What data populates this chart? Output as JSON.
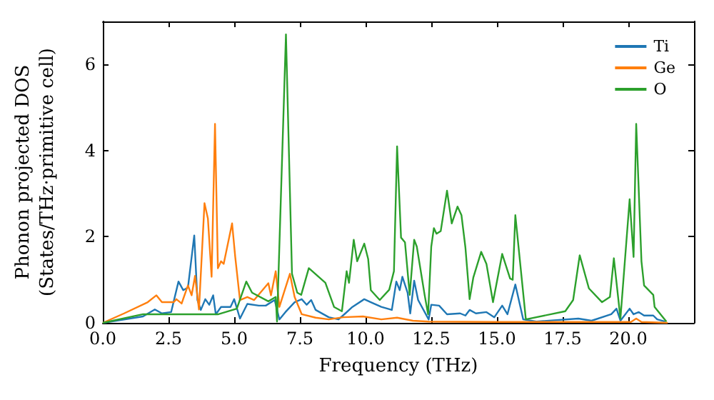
{
  "chart_data": {
    "type": "line",
    "xlabel": "Frequency (THz)",
    "ylabel": "Phonon projected DOS\n(States/THz·primitive cell)",
    "xlim": [
      0,
      22.5
    ],
    "xticks": [
      {
        "value": 0,
        "label": "0.0"
      },
      {
        "value": 2.5,
        "label": "2.5"
      },
      {
        "value": 5,
        "label": "5.0"
      },
      {
        "value": 7.5,
        "label": "7.5"
      },
      {
        "value": 10,
        "label": "10.0"
      },
      {
        "value": 12.5,
        "label": "12.5"
      },
      {
        "value": 15,
        "label": "15.0"
      },
      {
        "value": 17.5,
        "label": "17.5"
      },
      {
        "value": 20,
        "label": "20.0"
      }
    ],
    "ylim": [
      0,
      7
    ],
    "yticks": [
      0,
      2,
      4,
      6
    ],
    "legend": "top right",
    "grid": false,
    "line_style": "solid",
    "marker": "none",
    "series": [
      {
        "name": "Ti",
        "color": "#1f77b4",
        "x": [
          0,
          1.53,
          1.98,
          2.25,
          2.6,
          2.88,
          3.06,
          3.24,
          3.48,
          3.6,
          3.73,
          3.9,
          4.05,
          4.2,
          4.3,
          4.5,
          4.86,
          5.0,
          5.22,
          5.5,
          5.94,
          6.2,
          6.54,
          6.72,
          6.95,
          7.3,
          7.57,
          7.76,
          7.93,
          8.1,
          8.6,
          8.97,
          9.23,
          9.5,
          9.95,
          10.2,
          10.6,
          11.0,
          11.17,
          11.3,
          11.4,
          11.6,
          11.7,
          11.85,
          12.0,
          12.4,
          12.5,
          12.8,
          13.1,
          13.6,
          13.8,
          13.96,
          14.2,
          14.6,
          14.9,
          15.2,
          15.4,
          15.7,
          16.0,
          16.5,
          18.1,
          18.6,
          19.35,
          19.55,
          19.7,
          20.05,
          20.2,
          20.4,
          20.6,
          20.95,
          21.1,
          21.4
        ],
        "values": [
          0,
          0.15,
          0.31,
          0.22,
          0.25,
          0.96,
          0.76,
          0.82,
          2.03,
          0.53,
          0.3,
          0.55,
          0.42,
          0.64,
          0.2,
          0.37,
          0.37,
          0.55,
          0.1,
          0.44,
          0.4,
          0.4,
          0.53,
          0.08,
          0.25,
          0.48,
          0.55,
          0.42,
          0.53,
          0.3,
          0.13,
          0.08,
          0.22,
          0.37,
          0.55,
          0.48,
          0.37,
          0.3,
          0.96,
          0.76,
          1.07,
          0.7,
          0.22,
          0.98,
          0.53,
          0.08,
          0.42,
          0.4,
          0.2,
          0.22,
          0.17,
          0.3,
          0.22,
          0.25,
          0.13,
          0.4,
          0.2,
          0.89,
          0.08,
          0.03,
          0.1,
          0.05,
          0.2,
          0.33,
          0.05,
          0.33,
          0.2,
          0.25,
          0.17,
          0.17,
          0.08,
          0.03
        ]
      },
      {
        "name": "Ge",
        "color": "#ff7f0e",
        "x": [
          0,
          0.81,
          1.71,
          2.04,
          2.25,
          2.7,
          2.8,
          3.0,
          3.24,
          3.38,
          3.51,
          3.66,
          3.87,
          4.0,
          4.14,
          4.27,
          4.38,
          4.5,
          4.6,
          4.92,
          5.04,
          5.22,
          5.5,
          5.76,
          6.3,
          6.4,
          6.58,
          6.72,
          7.12,
          7.3,
          7.57,
          8.1,
          8.6,
          9.15,
          9.9,
          10.6,
          11.2,
          11.8,
          12.4,
          15,
          18,
          20.1,
          20.3,
          20.5,
          21.5
        ],
        "values": [
          0,
          0.22,
          0.48,
          0.64,
          0.48,
          0.48,
          0.55,
          0.45,
          0.87,
          0.64,
          1.09,
          0.31,
          2.78,
          2.42,
          1.07,
          4.62,
          1.27,
          1.43,
          1.37,
          2.31,
          1.53,
          0.53,
          0.6,
          0.53,
          0.92,
          0.64,
          1.2,
          0.37,
          1.14,
          0.6,
          0.2,
          0.12,
          0.08,
          0.13,
          0.15,
          0.08,
          0.12,
          0.05,
          0.03,
          0.02,
          0.02,
          0.02,
          0.1,
          0.02,
          0
        ]
      },
      {
        "name": "O",
        "color": "#2ca02c",
        "x": [
          0,
          1.53,
          3.33,
          4.4,
          5.1,
          5.46,
          5.68,
          6.3,
          6.58,
          6.63,
          6.97,
          7.2,
          7.4,
          7.55,
          7.84,
          8.47,
          8.8,
          9.1,
          9.28,
          9.37,
          9.55,
          9.68,
          9.95,
          10.1,
          10.2,
          10.54,
          10.9,
          11.08,
          11.2,
          11.35,
          11.5,
          11.68,
          11.85,
          11.95,
          12.25,
          12.38,
          12.5,
          12.6,
          12.7,
          12.86,
          13.1,
          13.28,
          13.5,
          13.65,
          13.8,
          13.96,
          14.1,
          14.4,
          14.6,
          14.85,
          15.2,
          15.5,
          15.6,
          15.7,
          16.1,
          17.6,
          17.9,
          18.15,
          18.5,
          19.0,
          19.3,
          19.45,
          19.7,
          20.05,
          20.2,
          20.3,
          20.5,
          20.6,
          20.95,
          21.0,
          21.45
        ],
        "values": [
          0,
          0.2,
          0.2,
          0.2,
          0.33,
          0.96,
          0.7,
          0.5,
          0.6,
          0.03,
          6.7,
          1.14,
          0.7,
          0.65,
          1.27,
          0.93,
          0.37,
          0.27,
          1.2,
          0.93,
          1.93,
          1.43,
          1.84,
          1.48,
          0.76,
          0.53,
          0.77,
          1.2,
          4.1,
          1.98,
          1.87,
          0.65,
          1.93,
          1.77,
          0.64,
          0.2,
          1.77,
          2.2,
          2.07,
          2.13,
          3.07,
          2.31,
          2.7,
          2.5,
          1.75,
          0.55,
          1.05,
          1.65,
          1.37,
          0.48,
          1.6,
          1.03,
          1.0,
          2.5,
          0.08,
          0.27,
          0.53,
          1.57,
          0.8,
          0.48,
          0.6,
          1.5,
          0.1,
          2.87,
          1.53,
          4.62,
          1.43,
          0.87,
          0.65,
          0.37,
          0.03
        ]
      }
    ]
  }
}
